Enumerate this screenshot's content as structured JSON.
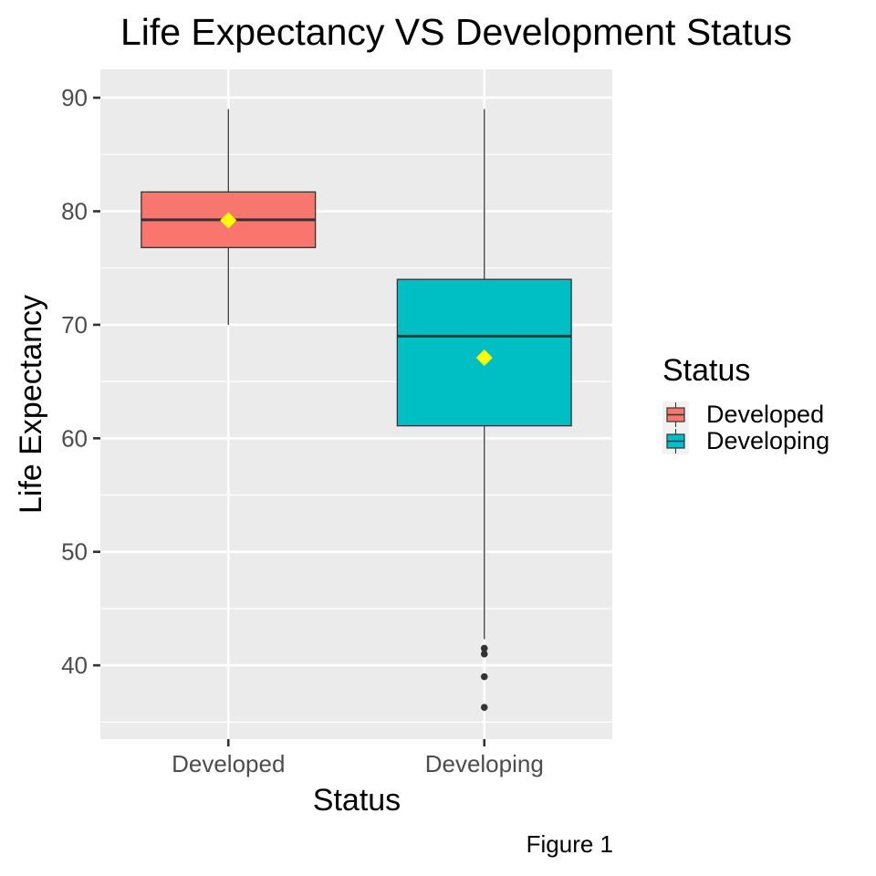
{
  "chart_data": {
    "type": "boxplot",
    "title": "Life Expectancy VS Development Status",
    "xlabel": "Status",
    "ylabel": "Life Expectancy",
    "caption": "Figure 1",
    "categories": [
      "Developed",
      "Developing"
    ],
    "ylim": [
      33.5,
      92.5
    ],
    "yticks": [
      40,
      50,
      60,
      70,
      80,
      90
    ],
    "yminor": [
      35,
      45,
      55,
      65,
      75,
      85
    ],
    "grid": true,
    "legend": {
      "title": "Status",
      "position": "right",
      "items": [
        "Developed",
        "Developing"
      ]
    },
    "series": [
      {
        "name": "Developed",
        "color": "#F8766D",
        "whisker_low": 70.0,
        "q1": 76.8,
        "median": 79.25,
        "q3": 81.7,
        "whisker_high": 89.0,
        "mean": 79.2,
        "outliers": []
      },
      {
        "name": "Developing",
        "color": "#00BFC4",
        "whisker_low": 42.3,
        "q1": 61.1,
        "median": 69.0,
        "q3": 74.0,
        "whisker_high": 89.0,
        "mean": 67.1,
        "outliers": [
          41.5,
          41.0,
          39.0,
          36.3
        ]
      }
    ],
    "mean_marker_color": "#FFFF00",
    "panel_background": "#EBEBEB"
  }
}
